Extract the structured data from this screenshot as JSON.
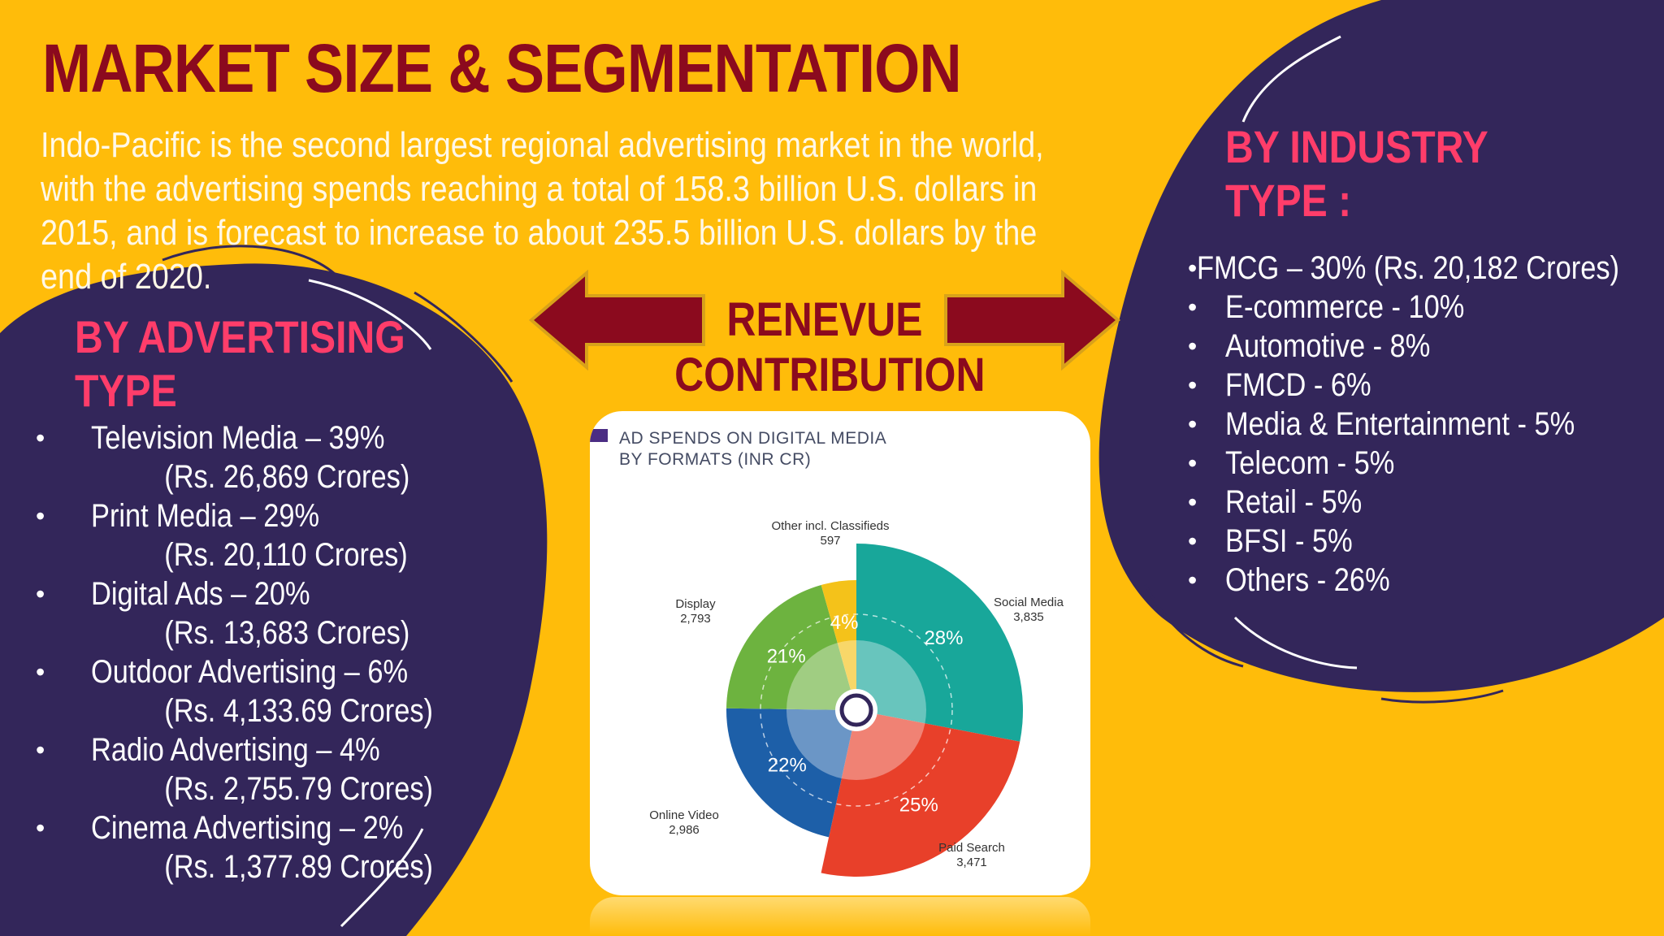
{
  "title": "MARKET SIZE & SEGMENTATION",
  "intro": "Indo-Pacific is the second largest regional advertising market in the world, with the advertising spends reaching a total of 158.3 billion U.S. dollars in 2015, and is forecast to increase to about 235.5 billion U.S. dollars by the end of 2020.",
  "advertising": {
    "heading": "BY ADVERTISING TYPE",
    "items": [
      {
        "label": "Television Media – 39%",
        "sub": "(Rs. 26,869 Crores)"
      },
      {
        "label": "Print Media – 29%",
        "sub": "(Rs. 20,110 Crores)"
      },
      {
        "label": "Digital Ads – 20%",
        "sub": "(Rs. 13,683 Crores)"
      },
      {
        "label": "Outdoor Advertising – 6%",
        "sub": "(Rs. 4,133.69 Crores)"
      },
      {
        "label": "Radio Advertising – 4%",
        "sub": "(Rs. 2,755.79 Crores)"
      },
      {
        "label": "Cinema Advertising – 2%",
        "sub": "(Rs. 1,377.89 Crores)"
      }
    ]
  },
  "center": {
    "line1": "RENEVUE",
    "line2": "CONTRIBUTION"
  },
  "industry": {
    "heading": "BY INDUSTRY TYPE :",
    "items": [
      "FMCG – 30% (Rs. 20,182 Crores)",
      "E-commerce - 10%",
      "Automotive - 8%",
      "FMCD - 6%",
      "Media & Entertainment - 5%",
      "Telecom - 5%",
      "Retail - 5%",
      "BFSI - 5%",
      "Others - 26%"
    ]
  },
  "colors": {
    "background": "#ffbc0a",
    "panel": "#33265a",
    "title": "#8b0a1e",
    "heading": "#ff3d6a"
  },
  "chart_data": {
    "type": "pie",
    "title": "AD SPENDS ON DIGITAL MEDIA BY FORMATS (INR CR)",
    "slices": [
      {
        "name": "Social Media",
        "value": 3835,
        "percent": "28%",
        "color": "#18a79a"
      },
      {
        "name": "Paid Search",
        "value": 3471,
        "percent": "25%",
        "color": "#e8402a"
      },
      {
        "name": "Online Video",
        "value": 2986,
        "percent": "22%",
        "color": "#1d5fa8"
      },
      {
        "name": "Display",
        "value": 2793,
        "percent": "21%",
        "color": "#6db33f"
      },
      {
        "name": "Other incl. Classifieds",
        "value": 597,
        "percent": "4%",
        "color": "#f4c21a"
      }
    ]
  }
}
